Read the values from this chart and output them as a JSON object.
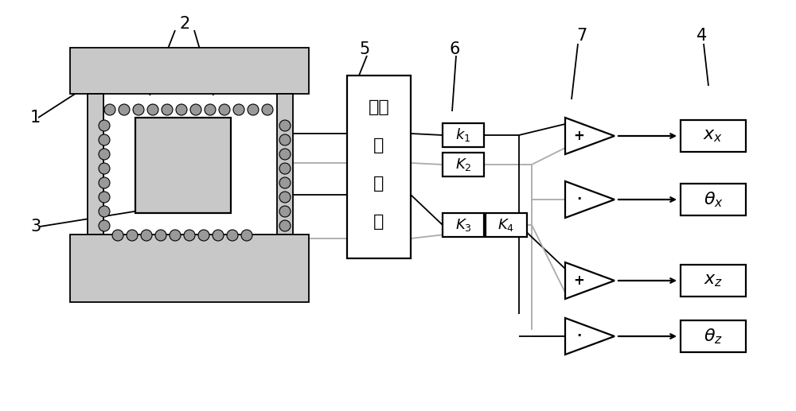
{
  "bg_color": "#ffffff",
  "lc": "#000000",
  "gray_line": "#aaaaaa",
  "box_gray": "#c8c8c8",
  "circle_gray": "#999999",
  "label_1": "1",
  "label_2": "2",
  "label_3": "3",
  "label_4": "4",
  "label_5": "5",
  "label_6": "6",
  "label_7": "7",
  "detector_lines": [
    "电流",
    "检",
    "测",
    "器"
  ],
  "k1": "k₁",
  "K2": "K₂",
  "K3": "K₃",
  "K4": "K₄",
  "out1": "$x_x$",
  "out2": "$\\theta_x$",
  "out3": "$x_z$",
  "out4": "$\\theta_z$",
  "plus": "+",
  "minus": "·",
  "lw": 1.3,
  "lw2": 1.6
}
